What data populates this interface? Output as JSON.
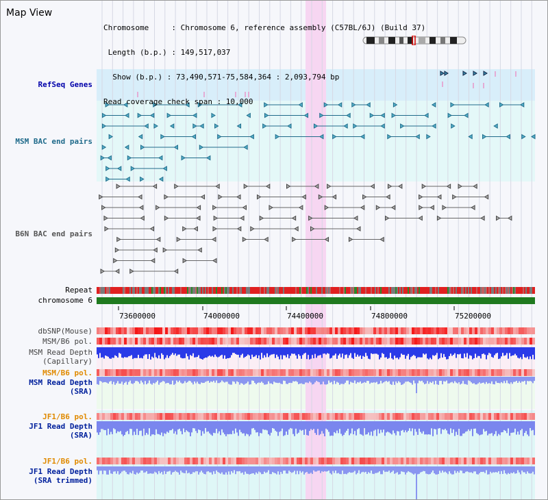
{
  "page": {
    "title": "Map View"
  },
  "header": {
    "chromosome_line": "Chromosome     : Chromosome 6, reference assembly (C57BL/6J) (Build 37)",
    "length_line": " Length (b.p.) : 149,517,037",
    "show_line": "  Show (b.p.) : 73,490,571-75,584,364 : 2,093,794 bp",
    "coverage_line": "Read coverage check span : 10,000"
  },
  "tracks": {
    "refseq": "RefSeq Genes",
    "msm_bac": "MSM BAC end pairs",
    "b6n_bac": "B6N BAC end pairs",
    "repeat": "Repeat",
    "chromosome": "chromosome 6",
    "dbsnp": "dbSNP(Mouse)",
    "msm_b6_pol_1": "MSM/B6 pol.",
    "msm_depth_cap_1": "MSM Read Depth",
    "msm_depth_cap_2": "(Capillary)",
    "msm_b6_pol_2": "MSM/B6 pol.",
    "msm_depth_sra_1": "MSM Read Depth",
    "msm_depth_sra_2": "(SRA)",
    "jf1_b6_pol_1": "JF1/B6 pol.",
    "jf1_depth_sra_1": "JF1 Read Depth",
    "jf1_depth_sra_2": "(SRA)",
    "jf1_b6_pol_2": "JF1/B6 pol.",
    "jf1_depth_trim_1": "JF1 Read Depth",
    "jf1_depth_trim_2": "(SRA trimmed)"
  },
  "axis": {
    "ticks": [
      "73600000",
      "74000000",
      "74400000",
      "74800000",
      "75200000"
    ]
  },
  "colors": {
    "refseq_bg": "#d8eefa",
    "msm_bg": "#e4f8f8",
    "highlight": "#f7d6f2",
    "chromosome": "#1f7a1f",
    "pol_label": "#e08a00",
    "depth_label": "#00209c",
    "msm_label": "#1f6a8a",
    "refseq_label": "#0000aa",
    "b6n_label": "#555555"
  }
}
